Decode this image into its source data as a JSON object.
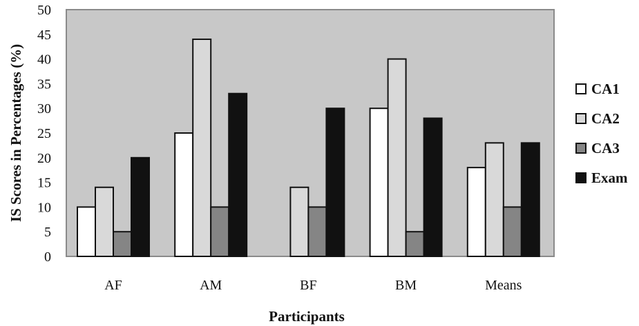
{
  "chart_data": {
    "type": "bar",
    "title": "",
    "xlabel": "Participants",
    "ylabel": "IS Scores in Percentages (%)",
    "ylim": [
      0,
      50
    ],
    "yticks": [
      0,
      5,
      10,
      15,
      20,
      25,
      30,
      35,
      40,
      45,
      50
    ],
    "grid": false,
    "legend_position": "right",
    "plot_background": "#c8c8c8",
    "categories": [
      "AF",
      "AM",
      "BF",
      "BM",
      "Means"
    ],
    "series": [
      {
        "name": "CA1",
        "color": "#ffffff",
        "values": [
          10,
          25,
          0,
          30,
          18
        ]
      },
      {
        "name": "CA2",
        "color": "#d9d9d9",
        "values": [
          14,
          44,
          14,
          40,
          23
        ]
      },
      {
        "name": "CA3",
        "color": "#858585",
        "values": [
          5,
          10,
          10,
          5,
          10
        ]
      },
      {
        "name": "Exam",
        "color": "#111111",
        "values": [
          20,
          33,
          30,
          28,
          23
        ]
      }
    ]
  }
}
